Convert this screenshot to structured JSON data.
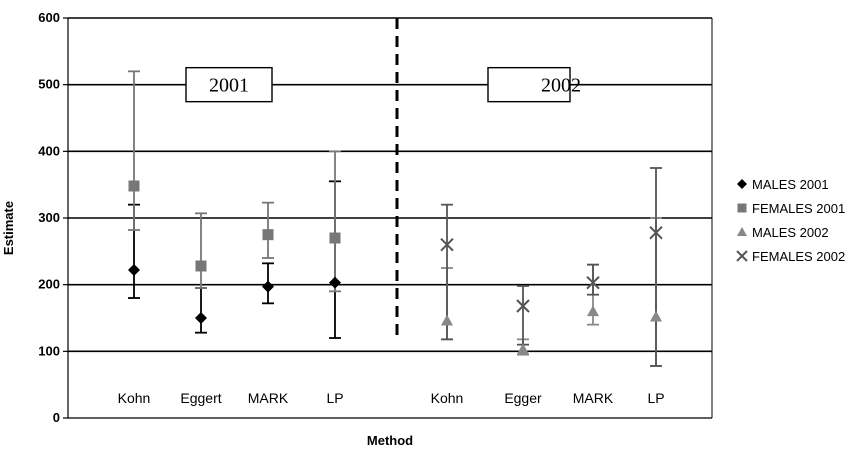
{
  "chart_data": {
    "type": "scatter",
    "xlabel": "Method",
    "ylabel": "Estimate",
    "ylim": [
      0,
      600
    ],
    "yticks": [
      0,
      100,
      200,
      300,
      400,
      500,
      600
    ],
    "grid": "horizontal",
    "legend_position": "right",
    "year_labels": [
      "2001",
      "2002"
    ],
    "groups": [
      {
        "label": "Kohn"
      },
      {
        "label": "Eggert"
      },
      {
        "label": "MARK"
      },
      {
        "label": "LP"
      },
      {
        "label": "Kohn"
      },
      {
        "label": "Egger"
      },
      {
        "label": "MARK"
      },
      {
        "label": "LP"
      }
    ],
    "series": [
      {
        "name": "MALES 2001",
        "marker": "diamond",
        "color": "#000000",
        "points": [
          {
            "group": 0,
            "y": 222,
            "low": 180,
            "high": 320
          },
          {
            "group": 1,
            "y": 150,
            "low": 128,
            "high": 195
          },
          {
            "group": 2,
            "y": 197,
            "low": 172,
            "high": 232
          },
          {
            "group": 3,
            "y": 203,
            "low": 120,
            "high": 355
          }
        ]
      },
      {
        "name": "FEMALES 2001",
        "marker": "square",
        "color": "#777777",
        "points": [
          {
            "group": 0,
            "y": 348,
            "low": 282,
            "high": 520
          },
          {
            "group": 1,
            "y": 228,
            "low": 195,
            "high": 307
          },
          {
            "group": 2,
            "y": 275,
            "low": 240,
            "high": 323
          },
          {
            "group": 3,
            "y": 270,
            "low": 190,
            "high": 400
          }
        ]
      },
      {
        "name": "MALES 2002",
        "marker": "triangle",
        "color": "#888888",
        "points": [
          {
            "group": 4,
            "y": 146,
            "low": 118,
            "high": 225
          },
          {
            "group": 5,
            "y": 103,
            "low": 95,
            "high": 118
          },
          {
            "group": 6,
            "y": 160,
            "low": 140,
            "high": 230
          },
          {
            "group": 7,
            "y": 152,
            "low": 78,
            "high": 300
          }
        ]
      },
      {
        "name": "FEMALES 2002",
        "marker": "x",
        "color": "#555555",
        "points": [
          {
            "group": 4,
            "y": 260,
            "low": 118,
            "high": 320
          },
          {
            "group": 5,
            "y": 168,
            "low": 110,
            "high": 198
          },
          {
            "group": 6,
            "y": 203,
            "low": 185,
            "high": 230
          },
          {
            "group": 7,
            "y": 278,
            "low": 78,
            "high": 375
          }
        ]
      }
    ]
  }
}
